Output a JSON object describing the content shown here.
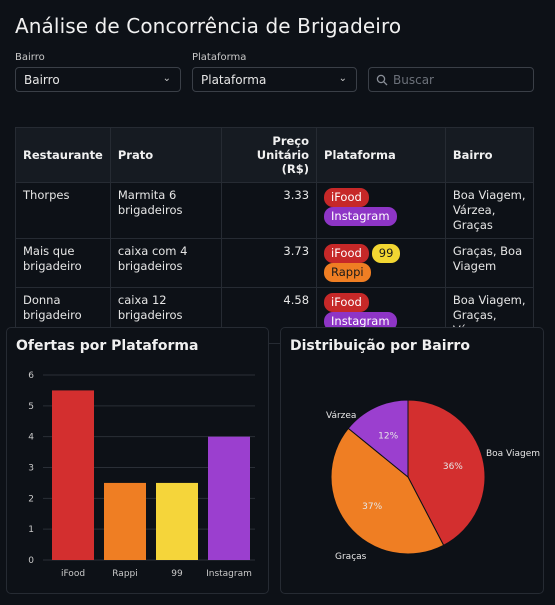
{
  "page": {
    "title": "Análise de Concorrência de Brigadeiro"
  },
  "filters": {
    "bairro": {
      "label": "Bairro",
      "value": "Bairro"
    },
    "plataforma": {
      "label": "Plataforma",
      "value": "Plataforma"
    },
    "search": {
      "placeholder": "Buscar"
    }
  },
  "table": {
    "headers": [
      "Restaurante",
      "Prato",
      "Preço Unitário (R$)",
      "Plataforma",
      "Bairro"
    ],
    "rows": [
      {
        "restaurante": "Thorpes",
        "prato": "Marmita 6 brigadeiros",
        "preco": "3.33",
        "plataformas": [
          "iFood",
          "Instagram"
        ],
        "bairro": "Boa Viagem, Várzea, Graças"
      },
      {
        "restaurante": "Mais que brigadeiro",
        "prato": "caixa com 4 brigadeiros",
        "preco": "3.73",
        "plataformas": [
          "iFood",
          "99",
          "Rappi"
        ],
        "bairro": "Graças, Boa Viagem"
      },
      {
        "restaurante": "Donna brigadeiro",
        "prato": "caixa 12 brigadeiros",
        "preco": "4.58",
        "plataformas": [
          "iFood",
          "Instagram"
        ],
        "bairro": "Boa Viagem, Graças, Várzea"
      }
    ]
  },
  "platform_colors": {
    "iFood": "#c62828",
    "Rappi": "#ef7e23",
    "99": "#f2d632",
    "Instagram": "#8e35c6"
  },
  "chart_data": [
    {
      "type": "bar",
      "title": "Ofertas por Plataforma",
      "categories": [
        "iFood",
        "Rappi",
        "99",
        "Instagram"
      ],
      "values": [
        5.5,
        2.5,
        2.5,
        4
      ],
      "colors": [
        "#d32f2f",
        "#ef7e23",
        "#f5d53a",
        "#9b3fcf"
      ],
      "ylim": [
        0,
        6
      ],
      "yticks": [
        "0",
        "1",
        "2",
        "3",
        "4",
        "5",
        "6"
      ],
      "grid": true
    },
    {
      "type": "pie",
      "title": "Distribuição por Bairro",
      "labels": [
        "Boa Viagem",
        "Graças",
        "Várzea"
      ],
      "values": [
        36,
        37,
        12
      ],
      "pct_labels": [
        "36%",
        "37%",
        "12%"
      ],
      "colors": [
        "#d32f2f",
        "#ef7e23",
        "#9b3fcf"
      ]
    }
  ]
}
